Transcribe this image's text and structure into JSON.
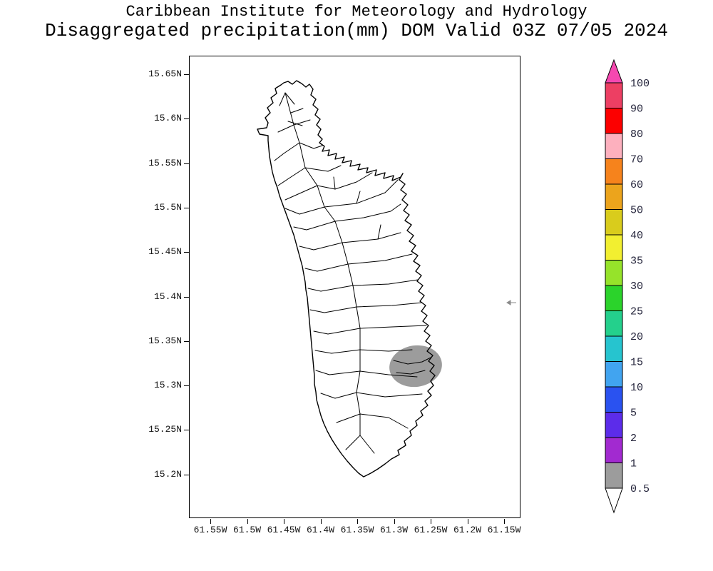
{
  "header": {
    "line1": "Caribbean Institute for Meteorology and Hydrology",
    "line2": "Disaggregated precipitation(mm) DOM Valid 03Z 07/05 2024"
  },
  "map": {
    "region_code": "DOM",
    "lat_tick_labels": [
      "15.65N",
      "15.6N",
      "15.55N",
      "15.5N",
      "15.45N",
      "15.4N",
      "15.35N",
      "15.3N",
      "15.25N",
      "15.2N"
    ],
    "lon_tick_labels": [
      "61.55W",
      "61.5W",
      "61.45W",
      "61.4W",
      "61.35W",
      "61.3W",
      "61.25W",
      "61.2W",
      "61.15W"
    ],
    "shaded_region": {
      "value_range_mm": "0.5-1",
      "color": "#9c9c9c",
      "location": "southeast coast"
    }
  },
  "colorbar": {
    "unit": "mm",
    "tick_labels": [
      "100",
      "90",
      "80",
      "70",
      "60",
      "50",
      "40",
      "35",
      "30",
      "25",
      "20",
      "15",
      "10",
      "5",
      "2",
      "1",
      "0.5"
    ],
    "band_colors_top_to_bottom": [
      "#ed3f63",
      "#fc0000",
      "#fdb0be",
      "#f6831c",
      "#eca41c",
      "#d9cc1c",
      "#f2ef30",
      "#96e32a",
      "#2bd32b",
      "#24d08c",
      "#26c4cf",
      "#41a4f0",
      "#2a52f0",
      "#5c2cea",
      "#a22ad0",
      "#9c9c9c"
    ],
    "arrow_top_color": "#f548b0",
    "arrow_bottom_color": "#ffffff"
  }
}
